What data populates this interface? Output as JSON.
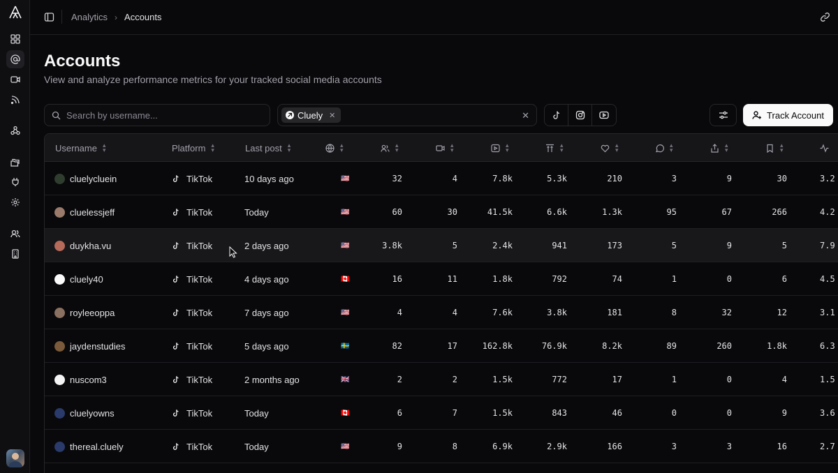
{
  "breadcrumbs": [
    "Analytics",
    "Accounts"
  ],
  "page": {
    "title": "Accounts",
    "subtitle": "View and analyze performance metrics for your tracked social media accounts"
  },
  "search": {
    "placeholder": "Search by username...",
    "value": ""
  },
  "filter": {
    "chip_label": "Cluely"
  },
  "track_button": "Track Account",
  "table": {
    "columns": {
      "username": "Username",
      "platform": "Platform",
      "last_post": "Last post"
    },
    "icon_columns": [
      "globe-icon",
      "followers-icon",
      "videos-icon",
      "views-icon",
      "avg-views-icon",
      "likes-icon",
      "comments-icon",
      "shares-icon",
      "saves-icon",
      "engagement-icon"
    ],
    "rows": [
      {
        "username": "cluelycluein",
        "platform": "TikTok",
        "last_post": "10 days ago",
        "flag": "🇺🇸",
        "followers": "32",
        "videos": "4",
        "views": "7.8k",
        "avg": "5.3k",
        "likes": "210",
        "comments": "3",
        "shares": "9",
        "saves": "30",
        "eng": "3.2",
        "avatar_color": "#2f3d2f"
      },
      {
        "username": "cluelessjeff",
        "platform": "TikTok",
        "last_post": "Today",
        "flag": "🇺🇸",
        "followers": "60",
        "videos": "30",
        "views": "41.5k",
        "avg": "6.6k",
        "likes": "1.3k",
        "comments": "95",
        "shares": "67",
        "saves": "266",
        "eng": "4.2",
        "avatar_color": "#9a7b6b"
      },
      {
        "username": "duykha.vu",
        "platform": "TikTok",
        "last_post": "2 days ago",
        "flag": "🇺🇸",
        "followers": "3.8k",
        "videos": "5",
        "views": "2.4k",
        "avg": "941",
        "likes": "173",
        "comments": "5",
        "shares": "9",
        "saves": "5",
        "eng": "7.9",
        "avatar_color": "#b56a5a"
      },
      {
        "username": "cluely40",
        "platform": "TikTok",
        "last_post": "4 days ago",
        "flag": "🇨🇦",
        "followers": "16",
        "videos": "11",
        "views": "1.8k",
        "avg": "792",
        "likes": "74",
        "comments": "1",
        "shares": "0",
        "saves": "6",
        "eng": "4.5",
        "avatar_color": "#fafafa"
      },
      {
        "username": "royleeoppa",
        "platform": "TikTok",
        "last_post": "7 days ago",
        "flag": "🇺🇸",
        "followers": "4",
        "videos": "4",
        "views": "7.6k",
        "avg": "3.8k",
        "likes": "181",
        "comments": "8",
        "shares": "32",
        "saves": "12",
        "eng": "3.1",
        "avatar_color": "#8a7060"
      },
      {
        "username": "jaydenstudies",
        "platform": "TikTok",
        "last_post": "5 days ago",
        "flag": "🇸🇪",
        "followers": "82",
        "videos": "17",
        "views": "162.8k",
        "avg": "76.9k",
        "likes": "8.2k",
        "comments": "89",
        "shares": "260",
        "saves": "1.8k",
        "eng": "6.3",
        "avatar_color": "#7a5a3a"
      },
      {
        "username": "nuscom3",
        "platform": "TikTok",
        "last_post": "2 months ago",
        "flag": "🇬🇧",
        "followers": "2",
        "videos": "2",
        "views": "1.5k",
        "avg": "772",
        "likes": "17",
        "comments": "1",
        "shares": "0",
        "saves": "4",
        "eng": "1.5",
        "avatar_color": "#f4f4f5"
      },
      {
        "username": "cluelyowns",
        "platform": "TikTok",
        "last_post": "Today",
        "flag": "🇨🇦",
        "followers": "6",
        "videos": "7",
        "views": "1.5k",
        "avg": "843",
        "likes": "46",
        "comments": "0",
        "shares": "0",
        "saves": "9",
        "eng": "3.6",
        "avatar_color": "#2a3a6a"
      },
      {
        "username": "thereal.cluely",
        "platform": "TikTok",
        "last_post": "Today",
        "flag": "🇺🇸",
        "followers": "9",
        "videos": "8",
        "views": "6.9k",
        "avg": "2.9k",
        "likes": "166",
        "comments": "3",
        "shares": "3",
        "saves": "16",
        "eng": "2.7",
        "avatar_color": "#2a3a6a"
      }
    ]
  }
}
